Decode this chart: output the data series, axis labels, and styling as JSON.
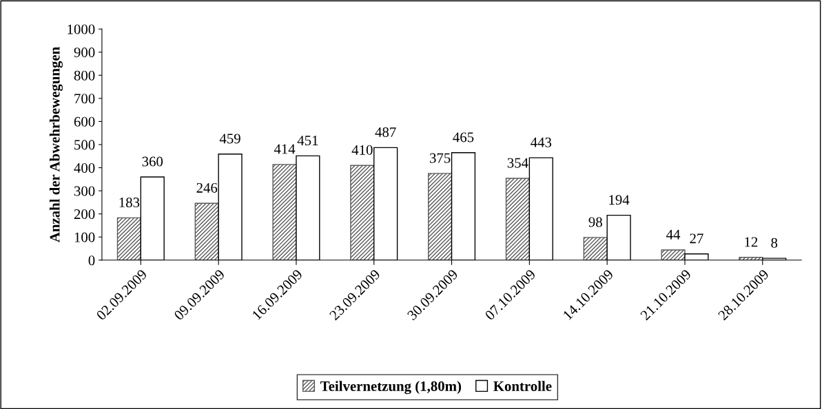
{
  "chart_data": {
    "type": "bar",
    "ylabel": "Anzahl der Abwehrbewegungen",
    "categories": [
      "02.09.2009",
      "09.09.2009",
      "16.09.2009",
      "23.09.2009",
      "30.09.2009",
      "07.10.2009",
      "14.10.2009",
      "21.10.2009",
      "28.10.2009"
    ],
    "series": [
      {
        "name": "Teilvernetzung (1,80m)",
        "color": "#595959",
        "values": [
          183,
          246,
          414,
          410,
          375,
          354,
          98,
          44,
          12
        ]
      },
      {
        "name": "Kontrolle",
        "color": "#ffffff",
        "values": [
          360,
          459,
          451,
          487,
          465,
          443,
          194,
          27,
          8
        ]
      }
    ],
    "ylim": [
      0,
      1000
    ],
    "yticks": [
      0,
      100,
      200,
      300,
      400,
      500,
      600,
      700,
      800,
      900,
      1000
    ],
    "data_labels": true,
    "grid": false,
    "legend": "bottom"
  }
}
